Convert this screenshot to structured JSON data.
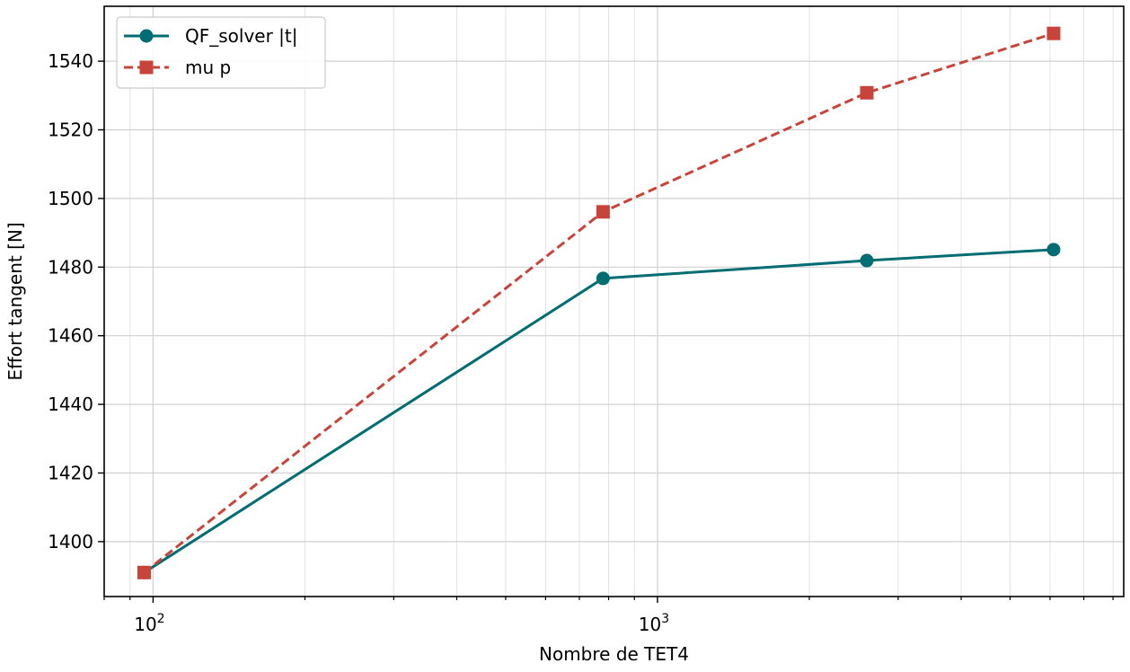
{
  "chart_data": {
    "type": "line",
    "title": "",
    "xlabel": "Nombre de TET4",
    "ylabel": "Effort tangent [N]",
    "xscale": "log",
    "xlim": [
      80,
      8400
    ],
    "ylim": [
      1384,
      1556
    ],
    "x": [
      96,
      780,
      2600,
      6100
    ],
    "x_ticks": [
      {
        "value": 100,
        "base": "10",
        "exp": "2"
      },
      {
        "value": 1000,
        "base": "10",
        "exp": "3"
      }
    ],
    "y_ticks": [
      1400,
      1420,
      1440,
      1460,
      1480,
      1500,
      1520,
      1540
    ],
    "grid": true,
    "legend_position": "top-left",
    "series": [
      {
        "name": "QF_solver |t|",
        "values": [
          1391,
          1476.7,
          1481.9,
          1485.1
        ],
        "color": "#006d72",
        "marker": "circle",
        "linestyle": "solid"
      },
      {
        "name": "mu p",
        "values": [
          1391,
          1496.1,
          1530.8,
          1548.1
        ],
        "color": "#c8443a",
        "marker": "square",
        "linestyle": "dashed"
      }
    ]
  }
}
